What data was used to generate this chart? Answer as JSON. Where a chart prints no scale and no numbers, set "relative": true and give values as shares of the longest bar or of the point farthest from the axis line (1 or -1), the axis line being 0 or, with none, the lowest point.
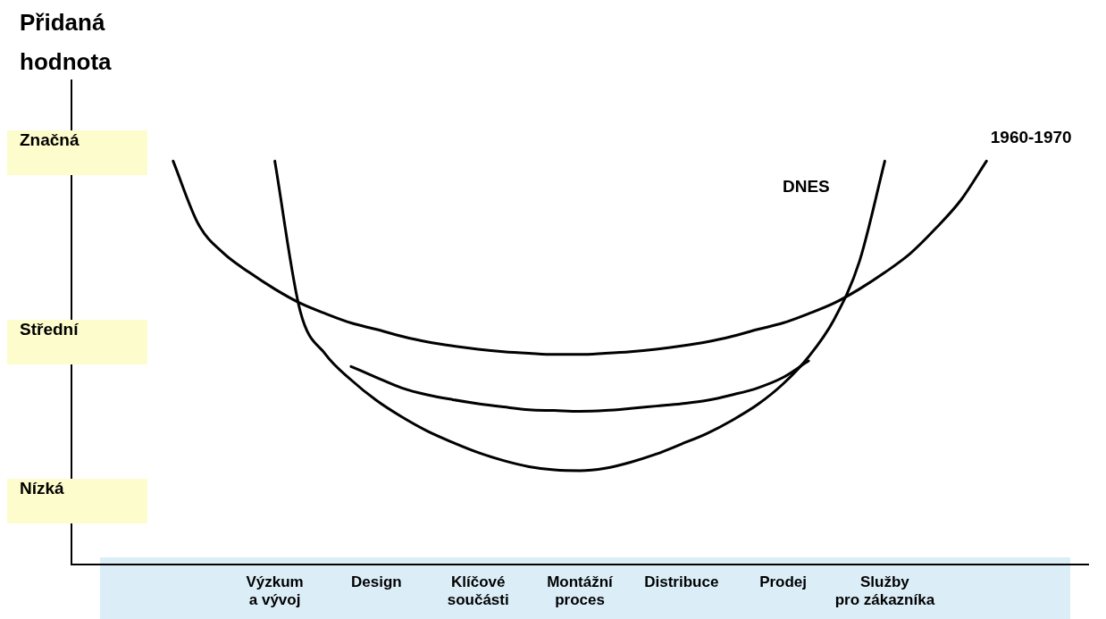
{
  "chart_data": {
    "type": "line",
    "relative": true,
    "ylabel": "Přidaná hodnota",
    "annotations": [
      "Značná",
      "Střední",
      "Nízká"
    ],
    "categories": [
      null,
      null,
      null,
      null,
      null,
      null,
      null,
      null,
      "Výzkum a vývoj",
      null,
      null,
      null,
      "Design",
      null,
      null,
      null,
      "Klíčové součásti",
      null,
      null,
      null,
      "Montážní proces",
      null,
      null,
      null,
      "Distribuce",
      null,
      null,
      null,
      "Prodej",
      null,
      null,
      null,
      "Služby pro zákazníka",
      null,
      null,
      null,
      null,
      null,
      null,
      null,
      null
    ],
    "grid": false,
    "legend": false,
    "marker": "none",
    "line_style": "solid",
    "series": [
      {
        "name": "1960-1970",
        "color": "#000000",
        "values": [
          null,
          null,
          null,
          null,
          1.0,
          0.843,
          0.771,
          0.724,
          0.683,
          0.648,
          0.622,
          0.599,
          0.583,
          0.566,
          0.552,
          0.542,
          0.534,
          0.528,
          0.524,
          0.521,
          0.521,
          0.524,
          0.528,
          0.534,
          0.542,
          0.552,
          0.566,
          0.583,
          0.599,
          0.622,
          0.648,
          0.683,
          0.724,
          0.771,
          0.833,
          0.904,
          1.0,
          null,
          null,
          null,
          null
        ]
      },
      {
        "name": "DNES",
        "color": "#000000",
        "values": [
          null,
          null,
          null,
          null,
          null,
          null,
          null,
          null,
          1.0,
          0.628,
          0.521,
          0.458,
          0.407,
          0.366,
          0.331,
          0.303,
          0.278,
          0.258,
          0.243,
          0.235,
          0.233,
          0.239,
          0.254,
          0.274,
          0.299,
          0.325,
          0.358,
          0.397,
          0.448,
          0.515,
          0.607,
          0.751,
          1.0,
          null,
          null,
          null,
          null,
          null,
          null,
          null,
          null
        ]
      },
      {
        "color": "#000000",
        "values": [
          null,
          null,
          null,
          null,
          null,
          null,
          null,
          null,
          null,
          null,
          null,
          0.491,
          0.464,
          0.438,
          0.421,
          0.409,
          0.399,
          0.391,
          0.384,
          0.382,
          0.38,
          0.382,
          0.387,
          0.393,
          0.399,
          0.407,
          0.421,
          0.438,
          0.464,
          0.505,
          null,
          null,
          null,
          null,
          null,
          null,
          null,
          null,
          null,
          null,
          null
        ]
      }
    ]
  }
}
